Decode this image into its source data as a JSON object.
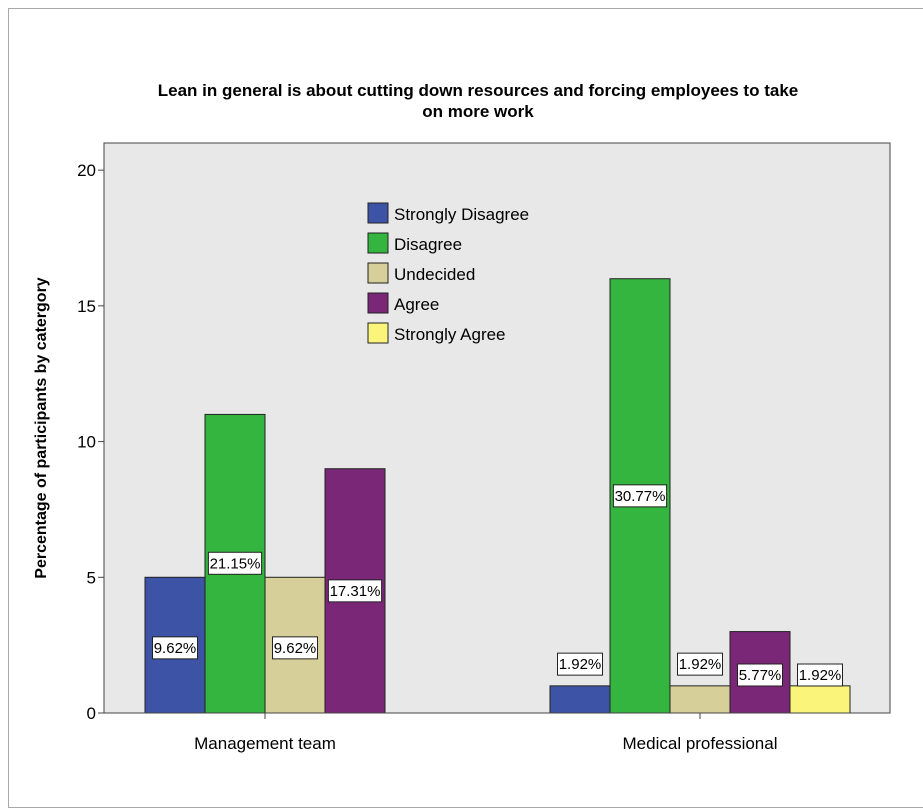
{
  "chart_data": {
    "type": "bar",
    "title": "Lean in general is about cutting down resources and forcing employees to take on more work",
    "title_lines": [
      "Lean in general is about cutting down resources and forcing employees to take",
      "on more work"
    ],
    "xlabel": "",
    "ylabel": "Percentage of participants by catergory",
    "ylim": [
      0,
      21
    ],
    "yticks": [
      0,
      5,
      10,
      15,
      20
    ],
    "categories": [
      "Management team",
      "Medical professional"
    ],
    "legend_position": "top-center",
    "grid": false,
    "series": [
      {
        "name": "Strongly Disagree",
        "color": "#3d53a6",
        "values": [
          5,
          1
        ],
        "labels": [
          "9.62%",
          "1.92%"
        ]
      },
      {
        "name": "Disagree",
        "color": "#33b53f",
        "values": [
          11,
          16
        ],
        "labels": [
          "21.15%",
          "30.77%"
        ]
      },
      {
        "name": "Undecided",
        "color": "#d6cf9a",
        "values": [
          5,
          1
        ],
        "labels": [
          "9.62%",
          "1.92%"
        ]
      },
      {
        "name": "Agree",
        "color": "#7a2778",
        "values": [
          9,
          3
        ],
        "labels": [
          "17.31%",
          "5.77%"
        ]
      },
      {
        "name": "Strongly Agree",
        "color": "#faf57a",
        "values": [
          null,
          1
        ],
        "labels": [
          "",
          "1.92%"
        ]
      }
    ],
    "plot_background": "#e8e8e8"
  }
}
